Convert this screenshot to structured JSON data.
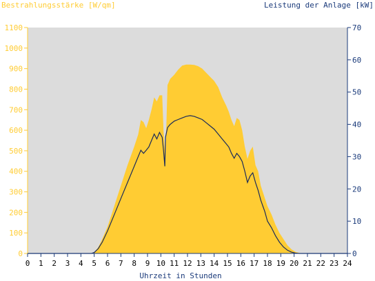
{
  "chart_data": {
    "type": "area",
    "left_axis_label": "Bestrahlungsstärke [W/qm]",
    "right_axis_label": "Leistung der Anlage [kW]",
    "xlabel": "Uhrzeit in Stunden",
    "xlim": [
      0,
      24
    ],
    "ylim_left": [
      0,
      1100
    ],
    "ylim_right": [
      0,
      70
    ],
    "x_ticks": [
      "0",
      "1",
      "2",
      "3",
      "4",
      "5",
      "6",
      "7",
      "8",
      "9",
      "10",
      "11",
      "12",
      "13",
      "14",
      "15",
      "16",
      "17",
      "18",
      "19",
      "20",
      "21",
      "22",
      "23",
      "24"
    ],
    "y_ticks_left": [
      "0",
      "100",
      "200",
      "300",
      "400",
      "500",
      "600",
      "700",
      "800",
      "900",
      "1000",
      "1100"
    ],
    "y_ticks_right": [
      "0",
      "10",
      "20",
      "30",
      "40",
      "50",
      "60",
      "70"
    ],
    "colors": {
      "irradiance": "#ffcc33",
      "power": "#1a2a5a",
      "plot_bg": "#dcdcdc",
      "left_axis": "#ffcc33",
      "right_axis": "#1a3a7a"
    },
    "series": [
      {
        "name": "Bestrahlungsstärke [W/qm]",
        "axis": "left",
        "x": [
          0,
          4.8,
          5.0,
          5.3,
          5.6,
          6.0,
          6.5,
          7.0,
          7.5,
          8.0,
          8.3,
          8.5,
          8.7,
          8.9,
          9.1,
          9.3,
          9.5,
          9.7,
          9.9,
          10.1,
          10.2,
          10.3,
          10.35,
          10.5,
          10.7,
          11.0,
          11.3,
          11.6,
          11.9,
          12.2,
          12.5,
          12.8,
          13.1,
          13.4,
          13.7,
          14.0,
          14.3,
          14.6,
          14.9,
          15.1,
          15.3,
          15.5,
          15.7,
          15.9,
          16.1,
          16.3,
          16.5,
          16.7,
          16.9,
          17.1,
          17.3,
          17.5,
          17.8,
          18.0,
          18.3,
          18.6,
          18.9,
          19.2,
          19.5,
          19.8,
          20.1,
          20.4,
          20.6,
          21.0,
          24
        ],
        "values": [
          0,
          0,
          5,
          30,
          70,
          130,
          230,
          330,
          430,
          520,
          580,
          650,
          640,
          610,
          650,
          700,
          760,
          740,
          770,
          770,
          600,
          500,
          480,
          820,
          850,
          870,
          895,
          915,
          920,
          920,
          918,
          912,
          900,
          880,
          860,
          840,
          810,
          760,
          720,
          690,
          650,
          620,
          660,
          650,
          600,
          520,
          460,
          500,
          520,
          430,
          400,
          330,
          270,
          230,
          190,
          140,
          100,
          70,
          40,
          20,
          8,
          2,
          0,
          0,
          0
        ]
      },
      {
        "name": "Leistung der Anlage [kW]",
        "axis": "right",
        "x": [
          0,
          4.8,
          5.0,
          5.3,
          5.6,
          6.0,
          6.5,
          7.0,
          7.5,
          8.0,
          8.3,
          8.5,
          8.7,
          8.9,
          9.1,
          9.3,
          9.5,
          9.7,
          9.9,
          10.1,
          10.2,
          10.3,
          10.35,
          10.5,
          10.7,
          11.0,
          11.3,
          11.6,
          11.9,
          12.2,
          12.5,
          12.8,
          13.1,
          13.4,
          13.7,
          14.0,
          14.3,
          14.6,
          14.9,
          15.1,
          15.3,
          15.5,
          15.7,
          15.9,
          16.1,
          16.3,
          16.5,
          16.7,
          16.9,
          17.1,
          17.3,
          17.5,
          17.8,
          18.0,
          18.3,
          18.6,
          18.9,
          19.2,
          19.5,
          19.8,
          20.1,
          20.4,
          20.6,
          21.0,
          24
        ],
        "values": [
          0,
          0,
          0.3,
          1.5,
          3.5,
          7,
          12,
          17,
          22,
          27,
          30,
          32,
          31,
          32,
          33,
          35,
          37,
          35.5,
          37.5,
          36,
          32,
          27,
          36,
          39,
          40,
          41,
          41.5,
          42,
          42.5,
          42.7,
          42.5,
          42,
          41.5,
          40.5,
          39.5,
          38.5,
          37,
          35.5,
          34,
          33,
          31,
          29.5,
          31,
          30,
          28.5,
          25.5,
          22,
          24,
          25,
          22,
          19.5,
          16.5,
          13,
          10,
          8,
          5.5,
          3.5,
          2,
          1,
          0.4,
          0.1,
          0,
          0,
          0,
          0
        ]
      }
    ]
  }
}
